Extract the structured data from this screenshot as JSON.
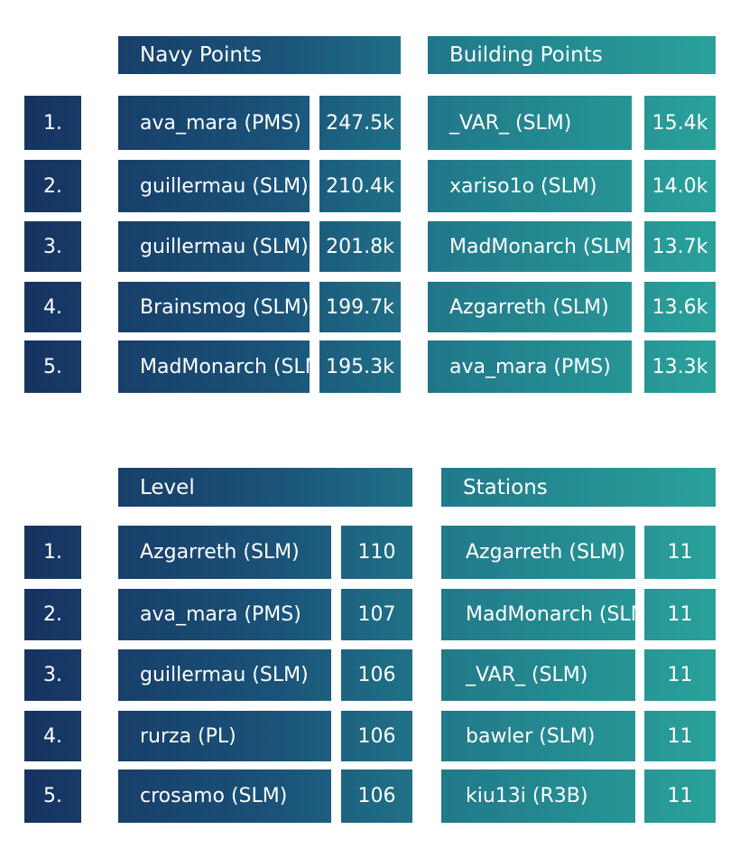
{
  "top_left": {
    "title": "Navy Points",
    "rows": [
      {
        "rank": "1.",
        "name": "ava_mara (PMS)",
        "value": "247.5k"
      },
      {
        "rank": "2.",
        "name": "guillermau (SLM)",
        "value": "210.4k"
      },
      {
        "rank": "3.",
        "name": "guillermau (SLM)",
        "value": "201.8k"
      },
      {
        "rank": "4.",
        "name": "Brainsmog (SLM)",
        "value": "199.7k"
      },
      {
        "rank": "5.",
        "name": "MadMonarch (SLM)",
        "value": "195.3k"
      }
    ]
  },
  "top_right": {
    "title": "Building Points",
    "rows": [
      {
        "name": "_VAR_ (SLM)",
        "value": "15.4k"
      },
      {
        "name": "xariso1o (SLM)",
        "value": "14.0k"
      },
      {
        "name": "MadMonarch (SLM)",
        "value": "13.7k"
      },
      {
        "name": "Azgarreth (SLM)",
        "value": "13.6k"
      },
      {
        "name": "ava_mara (PMS)",
        "value": "13.3k"
      }
    ]
  },
  "bottom_left": {
    "title": "Level",
    "rows": [
      {
        "rank": "1.",
        "name": "Azgarreth (SLM)",
        "value": "110"
      },
      {
        "rank": "2.",
        "name": "ava_mara (PMS)",
        "value": "107"
      },
      {
        "rank": "3.",
        "name": "guillermau (SLM)",
        "value": "106"
      },
      {
        "rank": "4.",
        "name": "rurza (PL)",
        "value": "106"
      },
      {
        "rank": "5.",
        "name": "crosamo (SLM)",
        "value": "106"
      }
    ]
  },
  "bottom_right": {
    "title": "Stations",
    "rows": [
      {
        "name": "Azgarreth (SLM)",
        "value": "11"
      },
      {
        "name": "MadMonarch (SLM)",
        "value": "11"
      },
      {
        "name": "_VAR_ (SLM)",
        "value": "11"
      },
      {
        "name": "bawler (SLM)",
        "value": "11"
      },
      {
        "name": "kiu13i (R3B)",
        "value": "11"
      }
    ]
  }
}
